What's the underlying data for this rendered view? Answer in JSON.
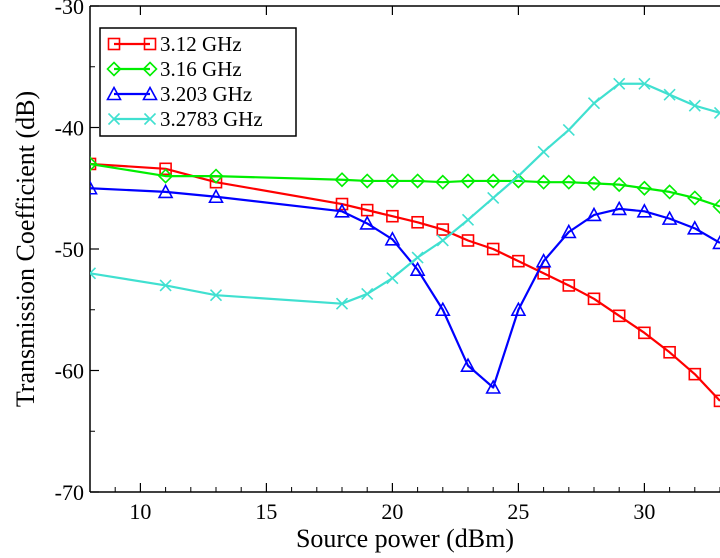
{
  "chart_data": {
    "type": "line",
    "title": "",
    "xlabel": "Source power (dBm)",
    "ylabel": "Transmission Coefficient (dB)",
    "xlim": [
      8,
      33
    ],
    "ylim": [
      -70,
      -30
    ],
    "xticks": [
      10,
      15,
      20,
      25,
      30
    ],
    "yticks": [
      -70,
      -60,
      -50,
      -40,
      -30
    ],
    "grid": false,
    "legend_position": "top-left",
    "series": [
      {
        "name": "3.12 GHz",
        "color": "#ff0000",
        "marker": "square",
        "x": [
          8,
          11,
          13,
          18,
          19,
          20,
          21,
          22,
          23,
          24,
          25,
          26,
          27,
          28,
          29,
          30,
          31,
          32,
          33
        ],
        "y": [
          -43.0,
          -43.4,
          -44.5,
          -46.3,
          -46.8,
          -47.3,
          -47.8,
          -48.4,
          -49.3,
          -50.0,
          -51.0,
          -52.0,
          -53.0,
          -54.1,
          -55.5,
          -56.9,
          -58.5,
          -60.3,
          -62.5
        ]
      },
      {
        "name": "3.16 GHz",
        "color": "#00ee00",
        "marker": "diamond",
        "x": [
          8,
          11,
          13,
          18,
          19,
          20,
          21,
          22,
          23,
          24,
          25,
          26,
          27,
          28,
          29,
          30,
          31,
          32,
          33
        ],
        "y": [
          -43.0,
          -44.0,
          -44.0,
          -44.3,
          -44.4,
          -44.4,
          -44.4,
          -44.5,
          -44.4,
          -44.4,
          -44.4,
          -44.5,
          -44.5,
          -44.6,
          -44.7,
          -45.0,
          -45.3,
          -45.8,
          -46.5
        ]
      },
      {
        "name": "3.203 GHz",
        "color": "#0000ff",
        "marker": "triangle",
        "x": [
          8,
          11,
          13,
          18,
          19,
          20,
          21,
          22,
          23,
          24,
          25,
          26,
          27,
          28,
          29,
          30,
          31,
          32,
          33
        ],
        "y": [
          -45.0,
          -45.3,
          -45.7,
          -46.9,
          -47.9,
          -49.2,
          -51.7,
          -55.0,
          -59.6,
          -61.4,
          -55.0,
          -51.0,
          -48.6,
          -47.2,
          -46.7,
          -46.9,
          -47.5,
          -48.3,
          -49.5
        ]
      },
      {
        "name": "3.2783 GHz",
        "color": "#40e0d0",
        "marker": "x",
        "x": [
          8,
          11,
          13,
          18,
          19,
          20,
          21,
          22,
          23,
          24,
          25,
          26,
          27,
          28,
          29,
          30,
          31,
          32,
          33
        ],
        "y": [
          -52.0,
          -53.0,
          -53.8,
          -54.5,
          -53.7,
          -52.4,
          -50.7,
          -49.3,
          -47.6,
          -45.8,
          -44.0,
          -42.0,
          -40.2,
          -38.0,
          -36.4,
          -36.4,
          -37.3,
          -38.2,
          -38.8
        ]
      }
    ]
  }
}
